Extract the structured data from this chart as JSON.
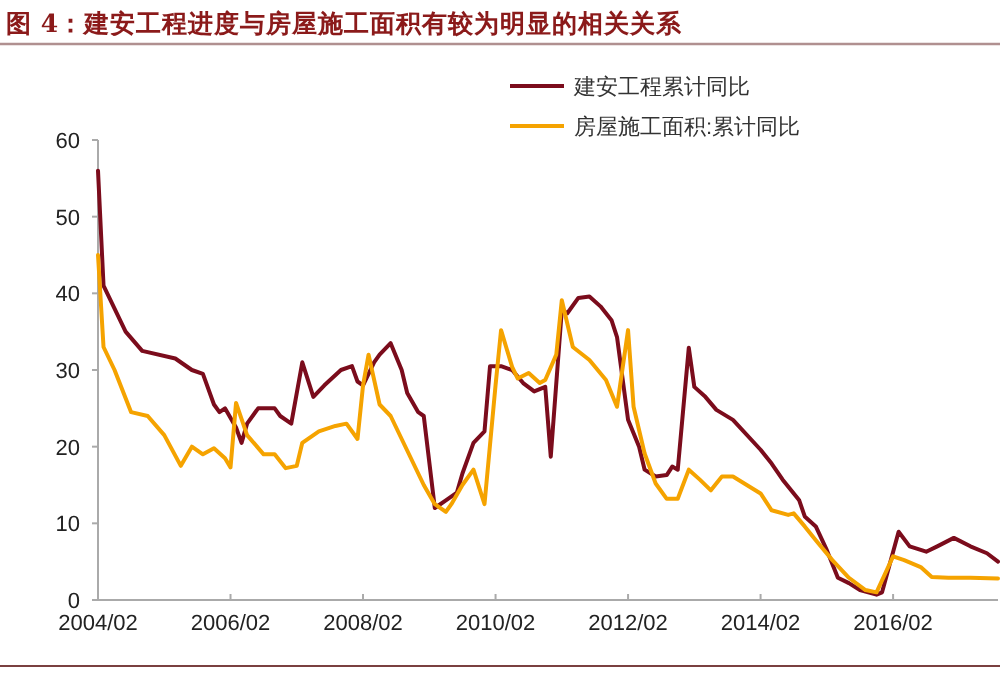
{
  "chart_data": {
    "type": "line",
    "title": "图 4：建安工程进度与房屋施工面积有较为明显的相关关系",
    "xlim": [
      "2004-02",
      "2017-09"
    ],
    "xticks": [
      {
        "value": "2004-02",
        "label": "2004/02"
      },
      {
        "value": "2006-02",
        "label": "2006/02"
      },
      {
        "value": "2008-02",
        "label": "2008/02"
      },
      {
        "value": "2010-02",
        "label": "2010/02"
      },
      {
        "value": "2012-02",
        "label": "2012/02"
      },
      {
        "value": "2014-02",
        "label": "2014/02"
      },
      {
        "value": "2016-02",
        "label": "2016/02"
      }
    ],
    "ylim": [
      0,
      60
    ],
    "yticks": [
      0,
      10,
      20,
      30,
      40,
      50,
      60
    ],
    "legend": "top right",
    "marker": "none",
    "line_style": "solid",
    "series": [
      {
        "name": "建安工程累计同比",
        "color": "#7b0c1c",
        "x": [
          "2004-02",
          "2004-03",
          "2004-05",
          "2004-07",
          "2004-10",
          "2005-04",
          "2005-07",
          "2005-09",
          "2005-11",
          "2005-12",
          "2006-01",
          "2006-03",
          "2006-04",
          "2006-05",
          "2006-07",
          "2006-10",
          "2006-11",
          "2007-01",
          "2007-03",
          "2007-05",
          "2007-07",
          "2007-10",
          "2007-12",
          "2008-01",
          "2008-02",
          "2008-04",
          "2008-05",
          "2008-07",
          "2008-09",
          "2008-10",
          "2008-12",
          "2009-01",
          "2009-03",
          "2009-05",
          "2009-07",
          "2009-08",
          "2009-10",
          "2009-12",
          "2010-01",
          "2010-03",
          "2010-05",
          "2010-07",
          "2010-09",
          "2010-11",
          "2010-12",
          "2011-02",
          "2011-03",
          "2011-05",
          "2011-07",
          "2011-09",
          "2011-11",
          "2011-12",
          "2012-02",
          "2012-04",
          "2012-05",
          "2012-07",
          "2012-09",
          "2012-10",
          "2012-11",
          "2013-01",
          "2013-02",
          "2013-04",
          "2013-06",
          "2013-09",
          "2014-02",
          "2014-04",
          "2014-06",
          "2014-09",
          "2014-10",
          "2014-12",
          "2015-02",
          "2015-04",
          "2015-06",
          "2015-08",
          "2015-11",
          "2015-12",
          "2016-03",
          "2016-05",
          "2016-08",
          "2016-10",
          "2017-01",
          "2017-04",
          "2017-07",
          "2017-09"
        ],
        "values": [
          56,
          41,
          38,
          35,
          32.5,
          31.5,
          30,
          29.5,
          25.5,
          24.5,
          25,
          22.5,
          20.5,
          23,
          25,
          25,
          24,
          23,
          31,
          26.5,
          28,
          30,
          30.5,
          28.5,
          28,
          31,
          32,
          33.5,
          30,
          27,
          24.5,
          24,
          12,
          13,
          14,
          16.5,
          20.5,
          22,
          30.5,
          30.5,
          30,
          28.3,
          27.2,
          27.8,
          18.7,
          37.8,
          37.4,
          39.4,
          39.6,
          38.3,
          36.5,
          34.3,
          23.5,
          20,
          17,
          16.1,
          16.3,
          17.4,
          17,
          32.9,
          27.8,
          26.5,
          24.8,
          23.5,
          19.6,
          17.8,
          15.7,
          13,
          10.9,
          9.6,
          6.5,
          2.9,
          2.2,
          1.3,
          0.7,
          1,
          8.9,
          7,
          6.3,
          7,
          8.1,
          7,
          6.1,
          5
        ]
      },
      {
        "name": "房屋施工面积:累计同比",
        "color": "#f5a300",
        "x": [
          "2004-02",
          "2004-03",
          "2004-05",
          "2004-08",
          "2004-11",
          "2005-02",
          "2005-05",
          "2005-07",
          "2005-09",
          "2005-11",
          "2006-01",
          "2006-02",
          "2006-03",
          "2006-05",
          "2006-08",
          "2006-10",
          "2006-12",
          "2007-02",
          "2007-03",
          "2007-06",
          "2007-09",
          "2007-11",
          "2008-01",
          "2008-02",
          "2008-03",
          "2008-05",
          "2008-07",
          "2008-10",
          "2009-01",
          "2009-03",
          "2009-05",
          "2009-06",
          "2009-08",
          "2009-10",
          "2009-12",
          "2010-02",
          "2010-03",
          "2010-05",
          "2010-06",
          "2010-08",
          "2010-10",
          "2010-11",
          "2011-01",
          "2011-02",
          "2011-04",
          "2011-07",
          "2011-10",
          "2011-12",
          "2012-02",
          "2012-03",
          "2012-05",
          "2012-07",
          "2012-09",
          "2012-11",
          "2013-01",
          "2013-03",
          "2013-05",
          "2013-07",
          "2013-09",
          "2014-02",
          "2014-04",
          "2014-07",
          "2014-08",
          "2014-10",
          "2014-12",
          "2015-03",
          "2015-06",
          "2015-09",
          "2015-11",
          "2016-02",
          "2016-04",
          "2016-07",
          "2016-09",
          "2016-12",
          "2017-04",
          "2017-09"
        ],
        "values": [
          45,
          33,
          30,
          24.5,
          24,
          21.5,
          17.5,
          20,
          19,
          19.8,
          18.5,
          17.3,
          25.7,
          21.5,
          19,
          19,
          17.2,
          17.5,
          20.5,
          22,
          22.7,
          23,
          21,
          28,
          32,
          25.5,
          24,
          19.5,
          15,
          12.5,
          11.5,
          12.5,
          15,
          17,
          12.5,
          28,
          35.2,
          30.4,
          28.9,
          29.6,
          28.3,
          28.7,
          32,
          39.1,
          33,
          31.3,
          28.7,
          25.2,
          35.2,
          25.2,
          19.1,
          15.2,
          13.2,
          13.2,
          17,
          15.7,
          14.3,
          16.1,
          16.1,
          13.9,
          11.7,
          11.1,
          11.3,
          9.6,
          7.8,
          5.2,
          2.9,
          1.3,
          1,
          5.7,
          5.2,
          4.3,
          3,
          2.9,
          2.9,
          2.8
        ]
      }
    ]
  }
}
